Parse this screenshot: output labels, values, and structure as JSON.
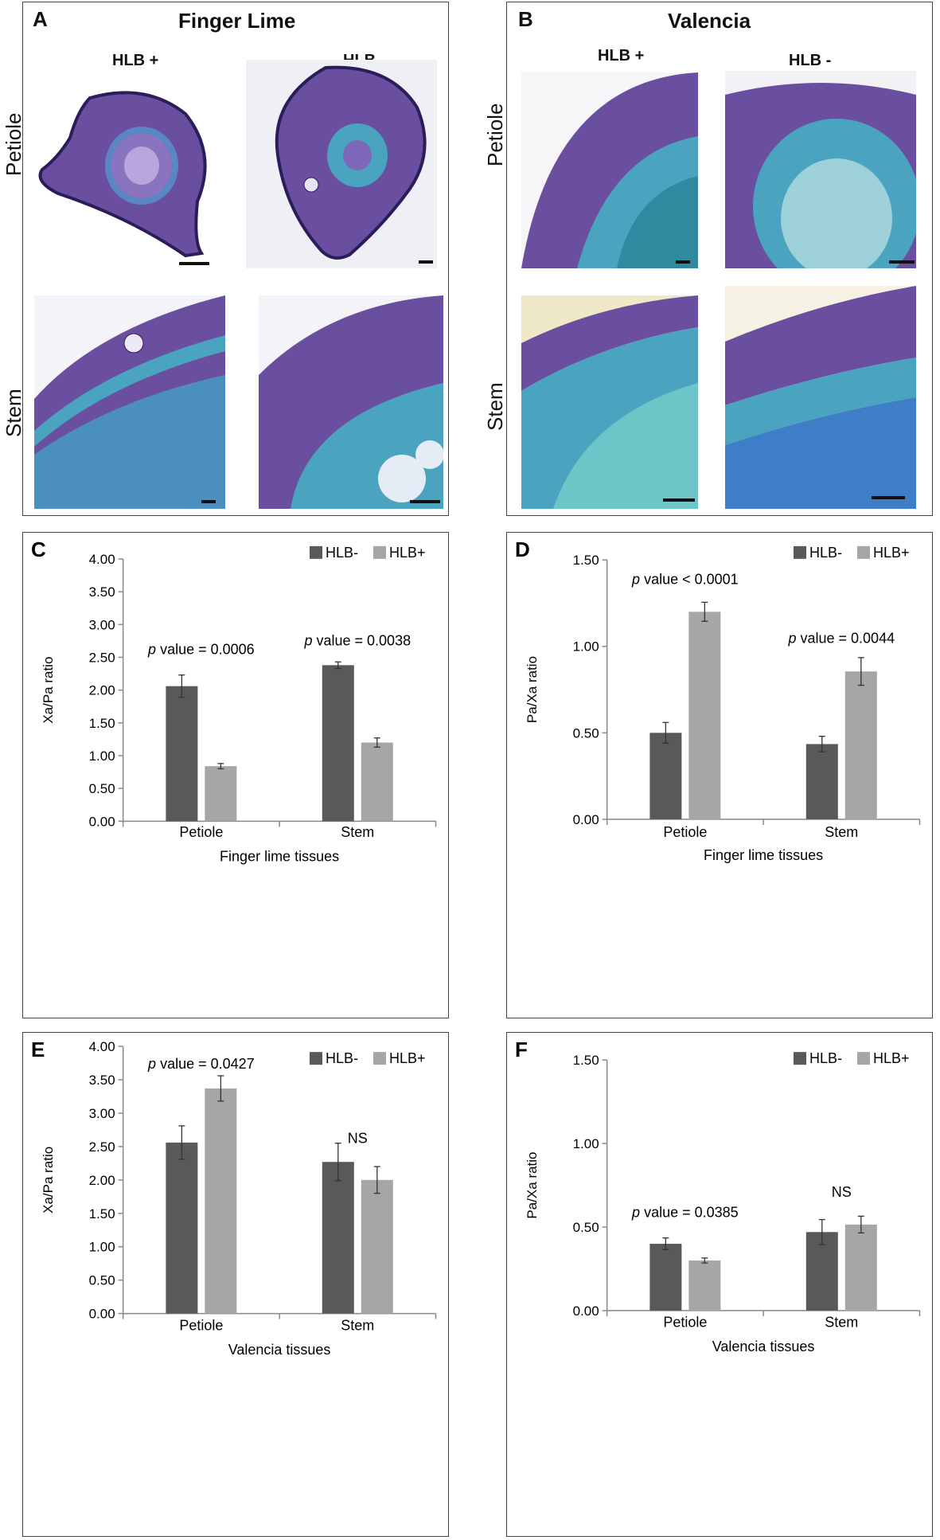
{
  "colors": {
    "hlb_minus": "#595959",
    "hlb_plus": "#a6a6a6",
    "tissue_purple": "#6a4fa0",
    "tissue_blue": "#4aa3bf"
  },
  "panel_A": {
    "label": "A",
    "title": "Finger Lime",
    "col1": "HLB +",
    "col2": "HLB -",
    "row1": "Petiole",
    "row2": "Stem"
  },
  "panel_B": {
    "label": "B",
    "title": "Valencia",
    "col1": "HLB +",
    "col2": "HLB -",
    "row1": "Petiole",
    "row2": "Stem"
  },
  "chart_data": [
    {
      "id": "C",
      "type": "bar",
      "title": "",
      "categories": [
        "Petiole",
        "Stem"
      ],
      "series": [
        {
          "name": "HLB-",
          "values": [
            2.06,
            2.38
          ],
          "errors": [
            0.17,
            0.05
          ]
        },
        {
          "name": "HLB+",
          "values": [
            0.84,
            1.2
          ],
          "errors": [
            0.04,
            0.07
          ]
        }
      ],
      "xlabel": "Finger lime tissues",
      "ylabel": "Xa/Pa ratio",
      "ylim": [
        0,
        4
      ],
      "ticks": [
        "0.00",
        "0.50",
        "1.00",
        "1.50",
        "2.00",
        "2.50",
        "3.00",
        "3.50",
        "4.00"
      ],
      "annotations": [
        {
          "p": "p",
          "text": " value = 0.0006",
          "category": "Petiole",
          "y": 2.55
        },
        {
          "p": "p",
          "text": " value = 0.0038",
          "category": "Stem",
          "y": 2.68
        }
      ],
      "legend": "top-right"
    },
    {
      "id": "D",
      "type": "bar",
      "title": "",
      "categories": [
        "Petiole",
        "Stem"
      ],
      "series": [
        {
          "name": "HLB-",
          "values": [
            0.5,
            0.435
          ],
          "errors": [
            0.06,
            0.045
          ]
        },
        {
          "name": "HLB+",
          "values": [
            1.2,
            0.855
          ],
          "errors": [
            0.055,
            0.08
          ]
        }
      ],
      "xlabel": "Finger lime  tissues",
      "ylabel": "Pa/Xa ratio",
      "ylim": [
        0,
        1.5
      ],
      "ticks": [
        "0.00",
        "0.50",
        "1.00",
        "1.50"
      ],
      "annotations": [
        {
          "p": "p",
          "text": " value < 0.0001",
          "category": "Petiole",
          "y": 1.36
        },
        {
          "p": "p",
          "text": " value = 0.0044",
          "category": "Stem",
          "y": 1.02
        }
      ],
      "legend": "top-right"
    },
    {
      "id": "E",
      "type": "bar",
      "title": "",
      "categories": [
        "Petiole",
        "Stem"
      ],
      "series": [
        {
          "name": "HLB-",
          "values": [
            2.56,
            2.27
          ],
          "errors": [
            0.25,
            0.28
          ]
        },
        {
          "name": "HLB+",
          "values": [
            3.37,
            2.0
          ],
          "errors": [
            0.19,
            0.2
          ]
        }
      ],
      "xlabel": "Valencia tissues",
      "ylabel": "Xa/Pa ratio",
      "ylim": [
        0,
        4
      ],
      "ticks": [
        "0.00",
        "0.50",
        "1.00",
        "1.50",
        "2.00",
        "2.50",
        "3.00",
        "3.50",
        "4.00"
      ],
      "annotations": [
        {
          "p": "p",
          "text": " value = 0.0427",
          "category": "Petiole",
          "y": 3.67
        },
        {
          "p": "",
          "text": "NS",
          "category": "Stem",
          "y": 2.55
        }
      ],
      "legend": "top-right"
    },
    {
      "id": "F",
      "type": "bar",
      "title": "",
      "categories": [
        "Petiole",
        "Stem"
      ],
      "series": [
        {
          "name": "HLB-",
          "values": [
            0.4,
            0.47
          ],
          "errors": [
            0.035,
            0.075
          ]
        },
        {
          "name": "HLB+",
          "values": [
            0.3,
            0.515
          ],
          "errors": [
            0.015,
            0.05
          ]
        }
      ],
      "xlabel": "Valencia tissues",
      "ylabel": "Pa/Xa ratio",
      "ylim": [
        0,
        1.5
      ],
      "ticks": [
        "0.00",
        "0.50",
        "1.00",
        "1.50"
      ],
      "annotations": [
        {
          "p": "p",
          "text": " value = 0.0385",
          "category": "Petiole",
          "y": 0.56
        },
        {
          "p": "",
          "text": "NS",
          "category": "Stem",
          "y": 0.68
        }
      ],
      "legend": "top-right"
    }
  ]
}
